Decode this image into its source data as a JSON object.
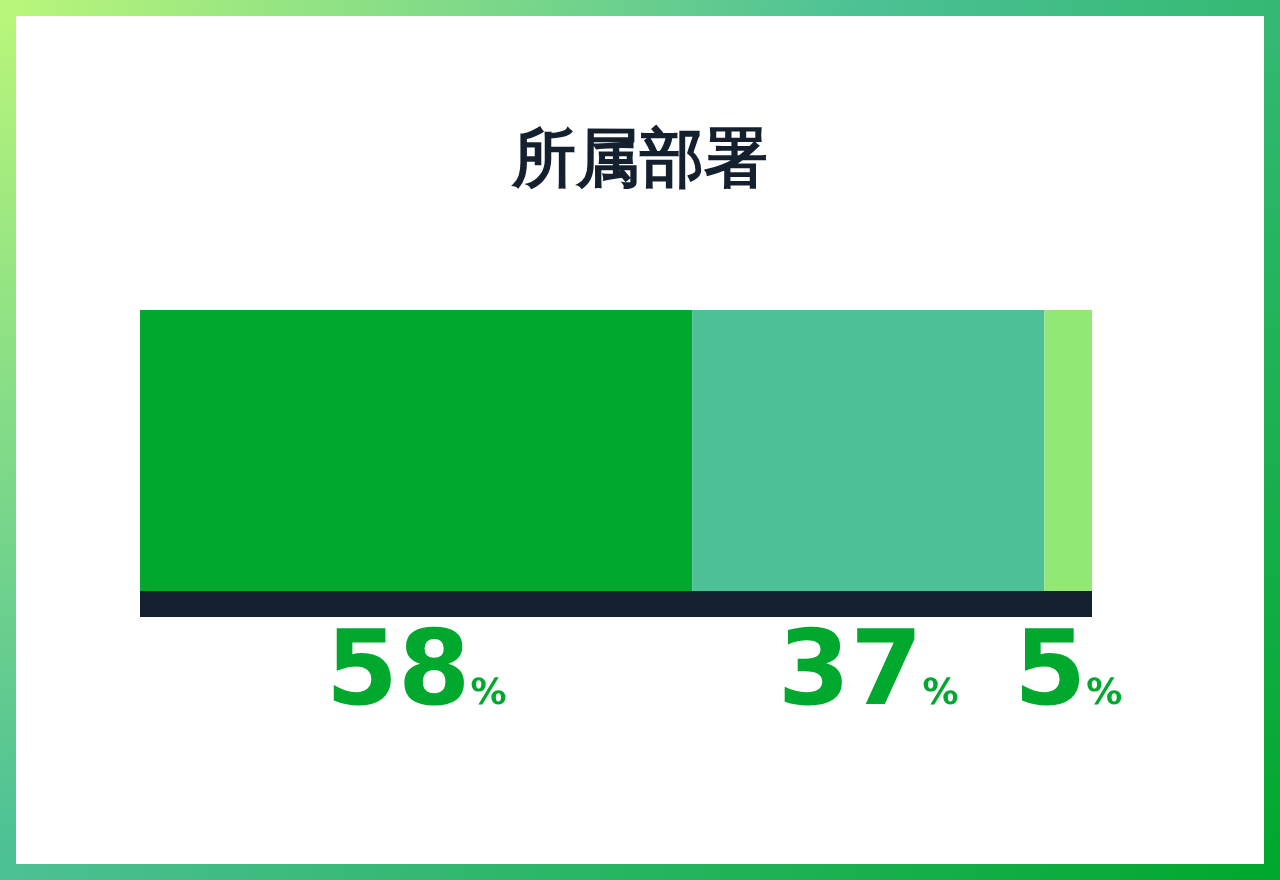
{
  "chart_data": {
    "type": "bar",
    "title": "所属部署",
    "orientation": "horizontal",
    "stacked": true,
    "categories": [
      null
    ],
    "tick_labels": false,
    "series": [
      {
        "color": "#00a82d",
        "values": [
          58
        ],
        "value_labels": [
          "58%"
        ]
      },
      {
        "color": "#4dc195",
        "values": [
          37
        ],
        "value_labels": [
          "37%"
        ]
      },
      {
        "color": "#92e874",
        "values": [
          5
        ],
        "value_labels": [
          "5%"
        ]
      }
    ]
  }
}
